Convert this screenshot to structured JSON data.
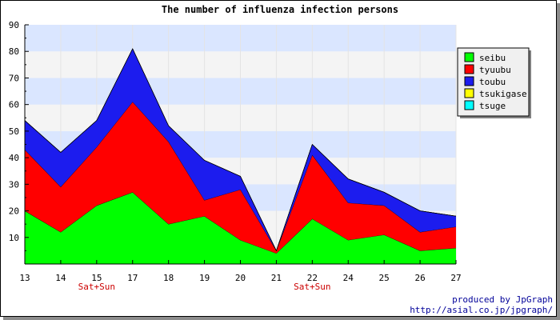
{
  "chart_data": {
    "type": "area",
    "stacked": true,
    "title": "The number of influenza infection persons",
    "xlabel": "",
    "ylabel": "",
    "categories": [
      "13",
      "14",
      "15",
      "17",
      "18",
      "19",
      "20",
      "21",
      "22",
      "24",
      "25",
      "26",
      "27"
    ],
    "sublabels": [
      {
        "category": "15",
        "text": "Sat+Sun"
      },
      {
        "category": "22",
        "text": "Sat+Sun"
      }
    ],
    "ylim": [
      0,
      90
    ],
    "yticks": [
      10,
      20,
      30,
      40,
      50,
      60,
      70,
      80,
      90
    ],
    "grid": "horizontal bands",
    "legend_position": "right",
    "series": [
      {
        "name": "seibu",
        "color": "#00ff00",
        "values": [
          20,
          12,
          22,
          27,
          15,
          18,
          9,
          4,
          17,
          9,
          11,
          5,
          6
        ]
      },
      {
        "name": "tyuubu",
        "color": "#ff0000",
        "values": [
          23,
          17,
          22,
          34,
          31,
          6,
          19,
          1,
          24,
          14,
          11,
          7,
          8
        ]
      },
      {
        "name": "toubu",
        "color": "#1c1cee",
        "values": [
          11,
          13,
          10,
          20,
          6,
          15,
          5,
          0,
          4,
          9,
          5,
          8,
          4
        ]
      },
      {
        "name": "tsukigase",
        "color": "#ffff00",
        "values": [
          0,
          0,
          0,
          0,
          0,
          0,
          0,
          0,
          0,
          0,
          0,
          0,
          0
        ]
      },
      {
        "name": "tsuge",
        "color": "#00ffff",
        "values": [
          0,
          0,
          0,
          0,
          0,
          0,
          0,
          0,
          0,
          0,
          0,
          0,
          0
        ]
      }
    ]
  },
  "credit": {
    "line1": "produced by JpGraph",
    "line2": "http://asial.co.jp/jpgraph/"
  }
}
